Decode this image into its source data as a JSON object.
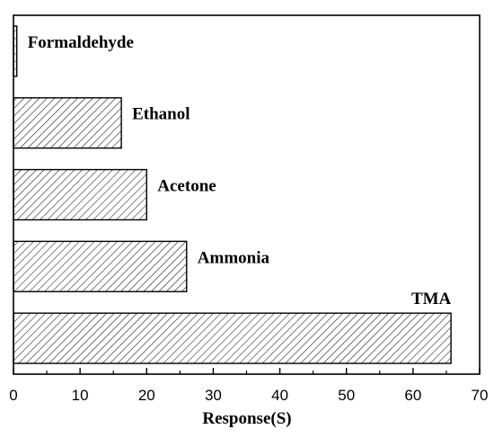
{
  "chart_data": {
    "type": "bar",
    "orientation": "horizontal",
    "categories": [
      "TMA",
      "Ammonia",
      "Acetone",
      "Ethanol",
      "Formaldehyde"
    ],
    "values": [
      65.7,
      26,
      20,
      16.2,
      0.5
    ],
    "title": "",
    "xlabel": "Response(S)",
    "ylabel": "",
    "xlim": [
      0,
      70
    ],
    "xticks": [
      "0",
      "10",
      "20",
      "30",
      "40",
      "50",
      "60",
      "70"
    ],
    "grid": false,
    "legend": "none",
    "bar_fill": "diagonal-hatch",
    "bar_color": "#000000"
  }
}
